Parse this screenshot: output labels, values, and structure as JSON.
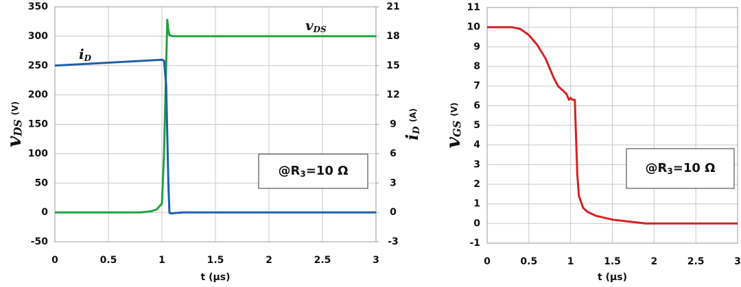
{
  "chart_data": [
    {
      "type": "line",
      "xlabel": "t (µs)",
      "ylabel": {
        "symbol": "v",
        "subscript": "DS",
        "unit": "(V)"
      },
      "y2label": {
        "symbol": "i",
        "subscript": "D",
        "unit": "(A)"
      },
      "xlim": [
        0,
        3
      ],
      "xticks": [
        0,
        0.5,
        1,
        1.5,
        2,
        2.5,
        3
      ],
      "ylim": [
        -50,
        350
      ],
      "yticks": [
        -50,
        0,
        50,
        100,
        150,
        200,
        250,
        300,
        350
      ],
      "y2lim": [
        -3,
        21
      ],
      "y2ticks": [
        -3,
        0,
        3,
        6,
        9,
        12,
        15,
        18,
        21
      ],
      "grid": true,
      "annotation": {
        "text": "@R",
        "subscript": "3",
        "suffix": "=10  Ω"
      },
      "series": [
        {
          "name": "v",
          "subscript": "DS",
          "color": "#1fa141",
          "x": [
            0,
            0.8,
            0.9,
            0.95,
            1.0,
            1.02,
            1.04,
            1.05,
            1.06,
            1.07,
            1.1,
            3
          ],
          "values": [
            0,
            0,
            2,
            5,
            15,
            100,
            250,
            328,
            310,
            302,
            300,
            300
          ]
        },
        {
          "name": "i",
          "subscript": "D",
          "color": "#1f5ea8",
          "axis": "y2",
          "x": [
            0,
            0.5,
            1.0,
            1.02,
            1.04,
            1.06,
            1.07,
            1.08,
            1.2,
            3
          ],
          "values": [
            15,
            15.3,
            15.6,
            15.5,
            13,
            3,
            0,
            -0.1,
            0,
            0
          ]
        }
      ]
    },
    {
      "type": "line",
      "xlabel": "t (µs)",
      "ylabel": {
        "symbol": "v",
        "subscript": "GS",
        "unit": "(V)"
      },
      "xlim": [
        0,
        3
      ],
      "xticks": [
        0,
        0.5,
        1,
        1.5,
        2,
        2.5,
        3
      ],
      "ylim": [
        -1,
        11
      ],
      "yticks": [
        -1,
        0,
        1,
        2,
        3,
        4,
        5,
        6,
        7,
        8,
        9,
        10,
        11
      ],
      "grid": true,
      "annotation": {
        "text": "@R",
        "subscript": "3",
        "suffix": "=10  Ω"
      },
      "series": [
        {
          "color": "#d42020",
          "x": [
            0,
            0.3,
            0.4,
            0.5,
            0.6,
            0.7,
            0.8,
            0.85,
            0.9,
            0.95,
            0.98,
            1.0,
            1.02,
            1.05,
            1.06,
            1.08,
            1.1,
            1.15,
            1.2,
            1.3,
            1.5,
            1.7,
            1.9,
            2,
            3
          ],
          "values": [
            10,
            10,
            9.9,
            9.6,
            9.1,
            8.4,
            7.4,
            7.0,
            6.8,
            6.6,
            6.3,
            6.4,
            6.3,
            6.3,
            5,
            2.5,
            1.4,
            0.8,
            0.6,
            0.4,
            0.2,
            0.1,
            0,
            0,
            0
          ]
        }
      ]
    }
  ]
}
